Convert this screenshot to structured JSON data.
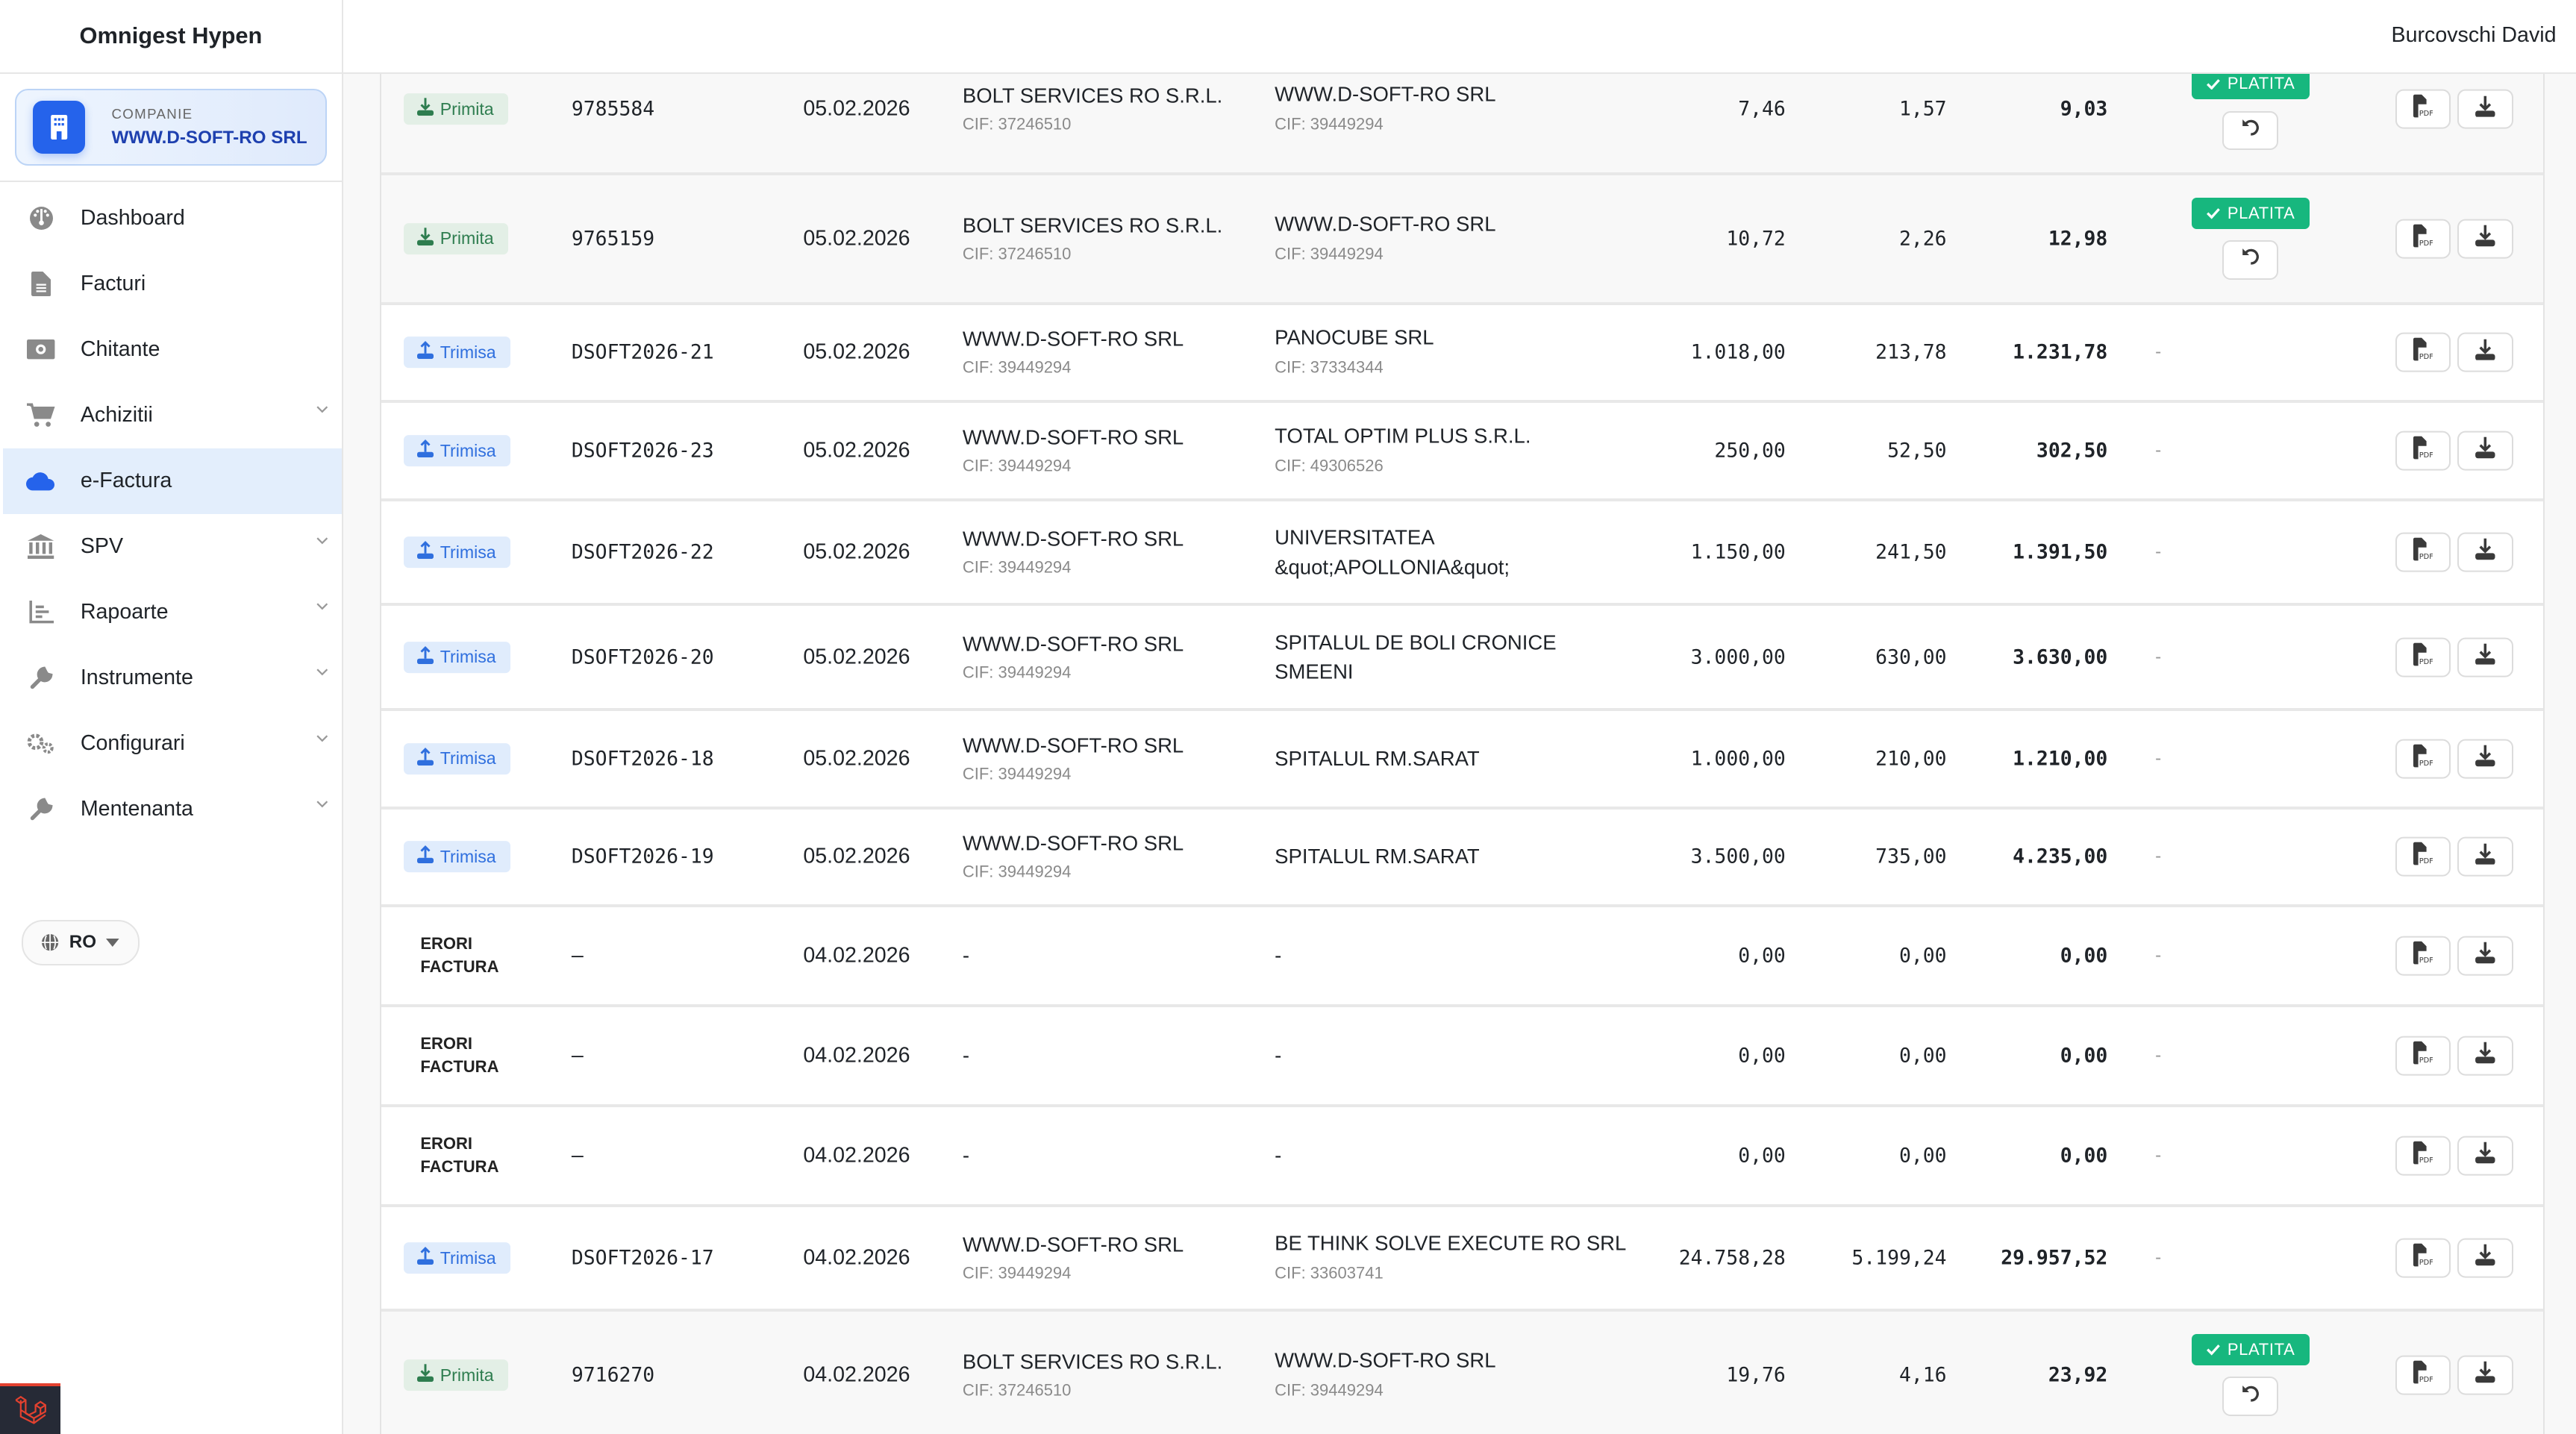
{
  "app": {
    "title": "Omnigest Hypen",
    "user": "Burcovschi David"
  },
  "company": {
    "label": "COMPANIE",
    "name": "WWW.D-SOFT-RO SRL"
  },
  "sidebar": {
    "items": [
      {
        "label": "Dashboard",
        "icon": "dashboard-icon",
        "chevron": false
      },
      {
        "label": "Facturi",
        "icon": "file-icon",
        "chevron": false
      },
      {
        "label": "Chitante",
        "icon": "money-icon",
        "chevron": false
      },
      {
        "label": "Achizitii",
        "icon": "cart-icon",
        "chevron": true
      },
      {
        "label": "e-Factura",
        "icon": "cloud-icon",
        "chevron": false,
        "active": true
      },
      {
        "label": "SPV",
        "icon": "bank-icon",
        "chevron": true
      },
      {
        "label": "Rapoarte",
        "icon": "chart-icon",
        "chevron": true
      },
      {
        "label": "Instrumente",
        "icon": "wrench-icon",
        "chevron": true
      },
      {
        "label": "Configurari",
        "icon": "gears-icon",
        "chevron": true
      },
      {
        "label": "Mentenanta",
        "icon": "wrench-icon",
        "chevron": true
      }
    ]
  },
  "language": "RO",
  "status_labels": {
    "received": "Primita",
    "sent": "Trimisa",
    "paid": "PLATITA",
    "error": "ERORI FACTURA"
  },
  "colors": {
    "accent": "#2563eb",
    "paid": "#17b77e",
    "received": "#2e7d4f",
    "sent": "#2f6fde"
  },
  "rows": [
    {
      "type": "received",
      "number": "9785584",
      "date": "05.02.2026",
      "issuer": "BOLT SERVICES RO S.R.L.",
      "issuer_cif": "CIF: 37246510",
      "receiver": "WWW.D-SOFT-RO SRL",
      "receiver_cif": "CIF: 39449294",
      "net": "7,46",
      "vat": "1,57",
      "total": "9,03",
      "paid": true
    },
    {
      "type": "received",
      "number": "9765159",
      "date": "05.02.2026",
      "issuer": "BOLT SERVICES RO S.R.L.",
      "issuer_cif": "CIF: 37246510",
      "receiver": "WWW.D-SOFT-RO SRL",
      "receiver_cif": "CIF: 39449294",
      "net": "10,72",
      "vat": "2,26",
      "total": "12,98",
      "paid": true
    },
    {
      "type": "sent",
      "number": "DSOFT2026-21",
      "date": "05.02.2026",
      "issuer": "WWW.D-SOFT-RO SRL",
      "issuer_cif": "CIF: 39449294",
      "receiver": "PANOCUBE SRL",
      "receiver_cif": "CIF: 37334344",
      "net": "1.018,00",
      "vat": "213,78",
      "total": "1.231,78",
      "status": "-"
    },
    {
      "type": "sent",
      "number": "DSOFT2026-23",
      "date": "05.02.2026",
      "issuer": "WWW.D-SOFT-RO SRL",
      "issuer_cif": "CIF: 39449294",
      "receiver": "TOTAL OPTIM PLUS S.R.L.",
      "receiver_cif": "CIF: 49306526",
      "net": "250,00",
      "vat": "52,50",
      "total": "302,50",
      "status": "-"
    },
    {
      "type": "sent",
      "number": "DSOFT2026-22",
      "date": "05.02.2026",
      "issuer": "WWW.D-SOFT-RO SRL",
      "issuer_cif": "CIF: 39449294",
      "receiver": "UNIVERSITATEA &quot;APOLLONIA&quot;",
      "net": "1.150,00",
      "vat": "241,50",
      "total": "1.391,50",
      "status": "-"
    },
    {
      "type": "sent",
      "number": "DSOFT2026-20",
      "date": "05.02.2026",
      "issuer": "WWW.D-SOFT-RO SRL",
      "issuer_cif": "CIF: 39449294",
      "receiver": "SPITALUL DE BOLI CRONICE SMEENI",
      "net": "3.000,00",
      "vat": "630,00",
      "total": "3.630,00",
      "status": "-"
    },
    {
      "type": "sent",
      "number": "DSOFT2026-18",
      "date": "05.02.2026",
      "issuer": "WWW.D-SOFT-RO SRL",
      "issuer_cif": "CIF: 39449294",
      "receiver": "SPITALUL RM.SARAT",
      "net": "1.000,00",
      "vat": "210,00",
      "total": "1.210,00",
      "status": "-"
    },
    {
      "type": "sent",
      "number": "DSOFT2026-19",
      "date": "05.02.2026",
      "issuer": "WWW.D-SOFT-RO SRL",
      "issuer_cif": "CIF: 39449294",
      "receiver": "SPITALUL RM.SARAT",
      "net": "3.500,00",
      "vat": "735,00",
      "total": "4.235,00",
      "status": "-"
    },
    {
      "type": "error",
      "number": "–",
      "date": "04.02.2026",
      "issuer": "-",
      "receiver": "-",
      "net": "0,00",
      "vat": "0,00",
      "total": "0,00",
      "status": "-"
    },
    {
      "type": "error",
      "number": "–",
      "date": "04.02.2026",
      "issuer": "-",
      "receiver": "-",
      "net": "0,00",
      "vat": "0,00",
      "total": "0,00",
      "status": "-"
    },
    {
      "type": "error",
      "number": "–",
      "date": "04.02.2026",
      "issuer": "-",
      "receiver": "-",
      "net": "0,00",
      "vat": "0,00",
      "total": "0,00",
      "status": "-"
    },
    {
      "type": "sent",
      "number": "DSOFT2026-17",
      "date": "04.02.2026",
      "issuer": "WWW.D-SOFT-RO SRL",
      "issuer_cif": "CIF: 39449294",
      "receiver": "BE THINK SOLVE EXECUTE RO SRL",
      "receiver_cif": "CIF: 33603741",
      "net": "24.758,28",
      "vat": "5.199,24",
      "total": "29.957,52",
      "status": "-"
    },
    {
      "type": "received",
      "number": "9716270",
      "date": "04.02.2026",
      "issuer": "BOLT SERVICES RO S.R.L.",
      "issuer_cif": "CIF: 37246510",
      "receiver": "WWW.D-SOFT-RO SRL",
      "receiver_cif": "CIF: 39449294",
      "net": "19,76",
      "vat": "4,16",
      "total": "23,92",
      "paid": true
    }
  ]
}
